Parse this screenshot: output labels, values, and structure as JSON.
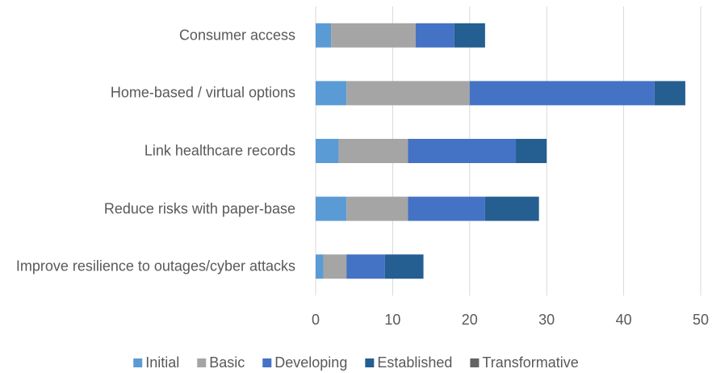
{
  "chart_data": {
    "type": "stacked_barh",
    "categories": [
      "Consumer access",
      "Home-based / virtual options",
      "Link healthcare records",
      "Reduce risks with paper-base",
      "Improve resilience to outages/cyber attacks"
    ],
    "series": [
      {
        "name": "Initial",
        "color": "#5b9bd5",
        "values": [
          2,
          4,
          3,
          4,
          1
        ]
      },
      {
        "name": "Basic",
        "color": "#a5a5a5",
        "values": [
          11,
          16,
          9,
          8,
          3
        ]
      },
      {
        "name": "Developing",
        "color": "#4472c4",
        "values": [
          5,
          24,
          14,
          10,
          5
        ]
      },
      {
        "name": "Established",
        "color": "#255e91",
        "values": [
          4,
          4,
          4,
          7,
          5
        ]
      },
      {
        "name": "Transformative",
        "color": "#636363",
        "values": [
          0,
          0,
          0,
          0,
          0
        ]
      }
    ],
    "xlim": [
      0,
      50
    ],
    "xticks": [
      0,
      10,
      20,
      30,
      40,
      50
    ],
    "grid": true,
    "legend": "bottom"
  }
}
